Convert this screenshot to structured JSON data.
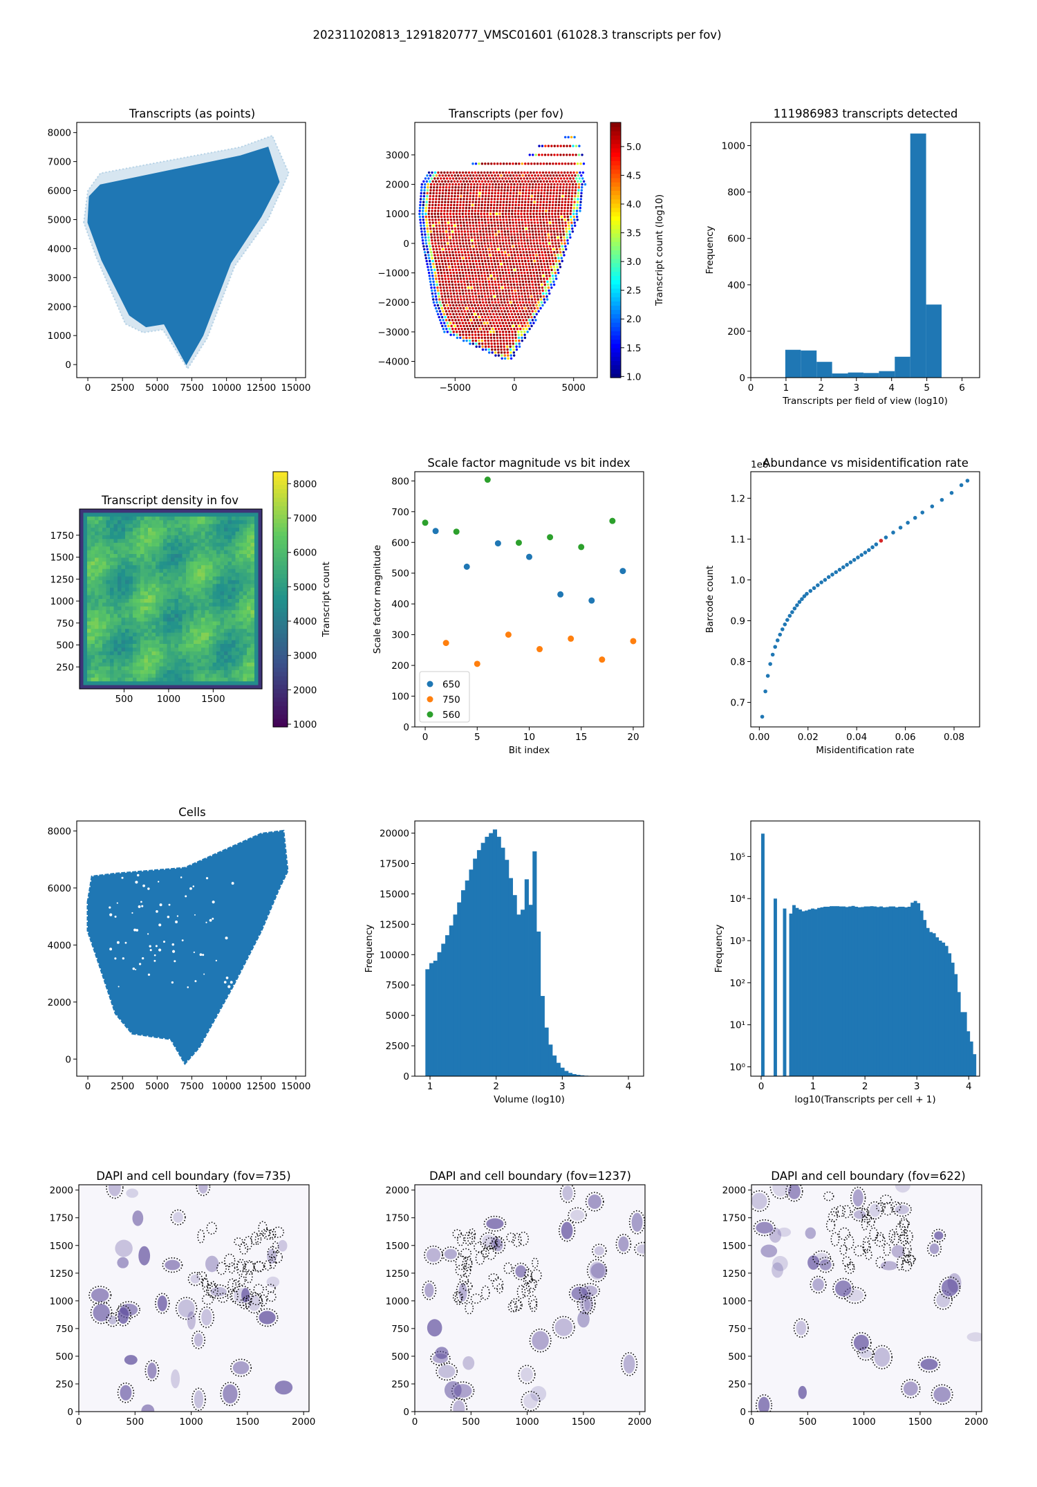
{
  "figure": {
    "suptitle": "202311020813_1291820777_VMSC01601 (61028.3 transcripts per fov)"
  },
  "colors": {
    "blue": "#1f77b4",
    "orange": "#ff7f0e",
    "green": "#2ca02c",
    "jet": [
      "#00007f",
      "#0000ff",
      "#007fff",
      "#00ffff",
      "#7fff7f",
      "#ffff00",
      "#ff7f00",
      "#ff0000",
      "#7f0000"
    ],
    "viridis": [
      "#440154",
      "#3b528b",
      "#21918c",
      "#5ec962",
      "#fde725"
    ],
    "dapi": "#5b4a9a",
    "highlight": "#d62728"
  },
  "chart_data": [
    {
      "id": "transcripts_points",
      "type": "scatter",
      "title": "Transcripts (as points)",
      "xlabel": "",
      "ylabel": "",
      "xlim": [
        -800,
        15700
      ],
      "ylim": [
        -450,
        8350
      ],
      "xticks": [
        0,
        2500,
        5000,
        7500,
        10000,
        12500,
        15000
      ],
      "yticks": [
        0,
        1000,
        2000,
        3000,
        4000,
        5000,
        6000,
        7000,
        8000
      ],
      "outline": [
        [
          0,
          4900
        ],
        [
          100,
          5800
        ],
        [
          900,
          6200
        ],
        [
          11000,
          7200
        ],
        [
          13000,
          7500
        ],
        [
          13800,
          6300
        ],
        [
          12500,
          5100
        ],
        [
          10300,
          3500
        ],
        [
          8300,
          1000
        ],
        [
          7100,
          0
        ],
        [
          5500,
          1400
        ],
        [
          4200,
          1300
        ],
        [
          3000,
          1700
        ],
        [
          1000,
          3600
        ],
        [
          0,
          4900
        ]
      ],
      "halo": [
        [
          -300,
          4900
        ],
        [
          0,
          6000
        ],
        [
          900,
          6600
        ],
        [
          11000,
          7500
        ],
        [
          13300,
          7900
        ],
        [
          14500,
          6600
        ],
        [
          13000,
          5000
        ],
        [
          10600,
          3400
        ],
        [
          8600,
          900
        ],
        [
          7200,
          -150
        ],
        [
          5400,
          1200
        ],
        [
          4000,
          1100
        ],
        [
          2700,
          1400
        ],
        [
          600,
          3700
        ],
        [
          -300,
          4900
        ]
      ]
    },
    {
      "id": "transcripts_per_fov",
      "type": "scatter",
      "title": "Transcripts (per fov)",
      "xlabel": "",
      "ylabel": "",
      "xlim": [
        -8400,
        7000
      ],
      "ylim": [
        -4550,
        4100
      ],
      "xticks": [
        -5000,
        0,
        5000
      ],
      "yticks": [
        -4000,
        -3000,
        -2000,
        -1000,
        0,
        1000,
        2000,
        3000
      ],
      "colorbar": {
        "label": "Transcript count (log10)",
        "min": 0.98,
        "max": 5.42,
        "ticks": [
          1.0,
          1.5,
          2.0,
          2.5,
          3.0,
          3.5,
          4.0,
          4.5,
          5.0
        ]
      },
      "row_extents": [
        [
          2400,
          -7200,
          5800
        ],
        [
          2000,
          -7800,
          6000
        ],
        [
          1000,
          -8000,
          5500
        ],
        [
          0,
          -7700,
          4600
        ],
        [
          -1000,
          -7200,
          3800
        ],
        [
          -2000,
          -6800,
          2700
        ],
        [
          -3000,
          -5900,
          1200
        ],
        [
          -4000,
          -500,
          -300
        ]
      ],
      "top_rows": [
        [
          3600,
          4300,
          5300
        ],
        [
          3300,
          2100,
          5600
        ],
        [
          3000,
          1300,
          5900
        ],
        [
          2700,
          -3500,
          6000
        ]
      ]
    },
    {
      "id": "transcripts_hist",
      "type": "bar",
      "title": "111986983 transcripts detected",
      "xlabel": "Transcripts per field of view (log10)",
      "ylabel": "Frequency",
      "xlim": [
        0,
        6.5
      ],
      "ylim": [
        0,
        1100
      ],
      "xticks": [
        0,
        1,
        2,
        3,
        4,
        5,
        6
      ],
      "yticks": [
        0,
        200,
        400,
        600,
        800,
        1000
      ],
      "bin_edges": [
        0.98,
        1.42,
        1.87,
        2.31,
        2.76,
        3.2,
        3.64,
        4.09,
        4.53,
        4.98,
        5.42
      ],
      "values": [
        120,
        117,
        68,
        18,
        22,
        20,
        28,
        90,
        1052,
        315
      ]
    },
    {
      "id": "density_fov",
      "type": "heatmap",
      "title": "Transcript density in fov",
      "xlabel": "",
      "ylabel": "",
      "xlim": [
        0,
        2048
      ],
      "ylim": [
        0,
        2048
      ],
      "xticks": [
        500,
        1000,
        1500
      ],
      "yticks": [
        250,
        500,
        750,
        1000,
        1250,
        1500,
        1750
      ],
      "colorbar": {
        "label": "Transcript count",
        "min": 920,
        "max": 8350,
        "ticks": [
          1000,
          2000,
          3000,
          4000,
          5000,
          6000,
          7000,
          8000
        ]
      }
    },
    {
      "id": "scale_factor",
      "type": "scatter",
      "title": "Scale factor magnitude vs bit index",
      "xlabel": "Bit index",
      "ylabel": "Scale factor magnitude",
      "xlim": [
        -1,
        21
      ],
      "ylim": [
        0,
        830
      ],
      "xticks": [
        0,
        5,
        10,
        15,
        20
      ],
      "yticks": [
        0,
        100,
        200,
        300,
        400,
        500,
        600,
        700,
        800
      ],
      "legend_position": "lower-left",
      "series": [
        {
          "name": "650",
          "x": [
            1,
            4,
            7,
            10,
            13,
            16,
            19
          ],
          "y": [
            637,
            521,
            597,
            553,
            431,
            411,
            507
          ]
        },
        {
          "name": "750",
          "x": [
            2,
            5,
            8,
            11,
            14,
            17,
            20
          ],
          "y": [
            273,
            205,
            300,
            253,
            287,
            219,
            279
          ]
        },
        {
          "name": "560",
          "x": [
            0,
            3,
            6,
            9,
            12,
            15,
            18
          ],
          "y": [
            664,
            635,
            804,
            599,
            617,
            585,
            670
          ]
        }
      ]
    },
    {
      "id": "abundance",
      "type": "scatter",
      "title": "Abundance vs misidentification rate",
      "xlabel": "Misidentification rate",
      "ylabel": "Barcode count",
      "offset_text": "1e6",
      "xlim": [
        -0.0035,
        0.0905
      ],
      "ylim": [
        0.64,
        1.265
      ],
      "xticks": [
        0.0,
        0.02,
        0.04,
        0.06,
        0.08
      ],
      "yticks": [
        0.7,
        0.8,
        0.9,
        1.0,
        1.1,
        1.2
      ],
      "x": [
        0.0012,
        0.0025,
        0.0035,
        0.0045,
        0.0055,
        0.0065,
        0.0075,
        0.0085,
        0.0095,
        0.0105,
        0.0115,
        0.0125,
        0.0135,
        0.0145,
        0.0155,
        0.0165,
        0.0175,
        0.0185,
        0.0195,
        0.021,
        0.0225,
        0.024,
        0.0255,
        0.027,
        0.0285,
        0.03,
        0.0315,
        0.033,
        0.0345,
        0.036,
        0.0375,
        0.039,
        0.0405,
        0.042,
        0.0435,
        0.045,
        0.0465,
        0.048,
        0.05,
        0.052,
        0.055,
        0.058,
        0.061,
        0.064,
        0.067,
        0.071,
        0.075,
        0.079,
        0.083,
        0.0855
      ],
      "y": [
        0.665,
        0.727,
        0.765,
        0.794,
        0.817,
        0.836,
        0.852,
        0.866,
        0.879,
        0.891,
        0.902,
        0.912,
        0.921,
        0.93,
        0.938,
        0.946,
        0.953,
        0.96,
        0.966,
        0.973,
        0.98,
        0.987,
        0.994,
        1.0,
        1.007,
        1.013,
        1.019,
        1.025,
        1.031,
        1.037,
        1.043,
        1.049,
        1.055,
        1.061,
        1.067,
        1.073,
        1.08,
        1.087,
        1.096,
        1.104,
        1.116,
        1.128,
        1.14,
        1.152,
        1.165,
        1.18,
        1.196,
        1.213,
        1.232,
        1.243
      ],
      "highlight_index": 38
    },
    {
      "id": "cells",
      "type": "scatter",
      "title": "Cells",
      "xlabel": "",
      "ylabel": "",
      "xlim": [
        -800,
        15700
      ],
      "ylim": [
        -600,
        8350
      ],
      "xticks": [
        0,
        2500,
        5000,
        7500,
        10000,
        12500,
        15000
      ],
      "yticks": [
        0,
        2000,
        4000,
        6000,
        8000
      ],
      "outline": [
        [
          0,
          5500
        ],
        [
          300,
          6400
        ],
        [
          2000,
          6500
        ],
        [
          7000,
          6700
        ],
        [
          12500,
          7900
        ],
        [
          14100,
          8000
        ],
        [
          14400,
          6600
        ],
        [
          13800,
          6000
        ],
        [
          12500,
          4500
        ],
        [
          10500,
          2600
        ],
        [
          8000,
          400
        ],
        [
          7000,
          -150
        ],
        [
          6000,
          700
        ],
        [
          3200,
          900
        ],
        [
          2000,
          1600
        ],
        [
          700,
          3500
        ],
        [
          0,
          4500
        ],
        [
          0,
          5500
        ]
      ]
    },
    {
      "id": "volume_hist",
      "type": "bar",
      "title": "",
      "xlabel": "Volume (log10)",
      "ylabel": "Frequency",
      "xlim": [
        0.77,
        4.23
      ],
      "ylim": [
        0,
        21000
      ],
      "xticks": [
        1,
        2,
        3,
        4
      ],
      "yticks": [
        0,
        2500,
        5000,
        7500,
        10000,
        12500,
        15000,
        17500,
        20000
      ],
      "bin_start": 0.93,
      "bin_width": 0.06,
      "values": [
        8800,
        9300,
        9500,
        10200,
        10900,
        11600,
        12400,
        13300,
        14300,
        15300,
        16100,
        17000,
        17900,
        18600,
        19200,
        19700,
        20000,
        20300,
        19700,
        18800,
        17800,
        16300,
        14900,
        13300,
        13700,
        16200,
        14100,
        18500,
        11900,
        6600,
        4000,
        2600,
        1700,
        1100,
        700,
        430,
        270,
        170,
        110,
        70,
        40,
        25,
        15,
        10,
        6,
        4,
        2,
        1
      ]
    },
    {
      "id": "transcripts_per_cell",
      "type": "bar",
      "title": "",
      "xlabel": "log10(Transcripts per cell + 1)",
      "ylabel": "Frequency",
      "yscale": "log",
      "xlim": [
        -0.2,
        4.21
      ],
      "ylim": [
        0.6,
        700000
      ],
      "xticks": [
        0,
        1,
        2,
        3,
        4
      ],
      "yticks": [
        1,
        10,
        100,
        1000,
        10000,
        100000
      ],
      "ytick_labels": [
        "10⁰",
        "10¹",
        "10²",
        "10³",
        "10⁴",
        "10⁵"
      ],
      "bin_start": 0.0,
      "bin_width": 0.06,
      "values": [
        350000,
        0,
        0,
        0,
        10000,
        0,
        0,
        5800,
        0,
        4400,
        7000,
        6000,
        5500,
        5000,
        5200,
        5500,
        5800,
        5600,
        6000,
        6200,
        6400,
        6400,
        6600,
        6600,
        6600,
        6500,
        6500,
        6300,
        6500,
        6700,
        6400,
        6200,
        6300,
        6500,
        6500,
        6600,
        6500,
        6300,
        6500,
        6200,
        6300,
        6500,
        6500,
        6200,
        6400,
        6400,
        6200,
        6400,
        8000,
        8800,
        7800,
        5200,
        3100,
        2000,
        1600,
        1500,
        1200,
        1000,
        900,
        750,
        500,
        300,
        160,
        60,
        20,
        20,
        7,
        4,
        2
      ]
    }
  ],
  "dapi_panels": [
    {
      "id": "dapi_735",
      "title": "DAPI and cell boundary (fov=735)",
      "seed": 735
    },
    {
      "id": "dapi_1237",
      "title": "DAPI and cell boundary (fov=1237)",
      "seed": 1237
    },
    {
      "id": "dapi_622",
      "title": "DAPI and cell boundary (fov=622)",
      "seed": 622
    }
  ],
  "dapi_axes": {
    "xlim": [
      0,
      2048
    ],
    "ylim": [
      0,
      2048
    ],
    "xticks": [
      0,
      500,
      1000,
      1500,
      2000
    ],
    "yticks": [
      0,
      250,
      500,
      750,
      1000,
      1250,
      1500,
      1750,
      2000
    ]
  }
}
